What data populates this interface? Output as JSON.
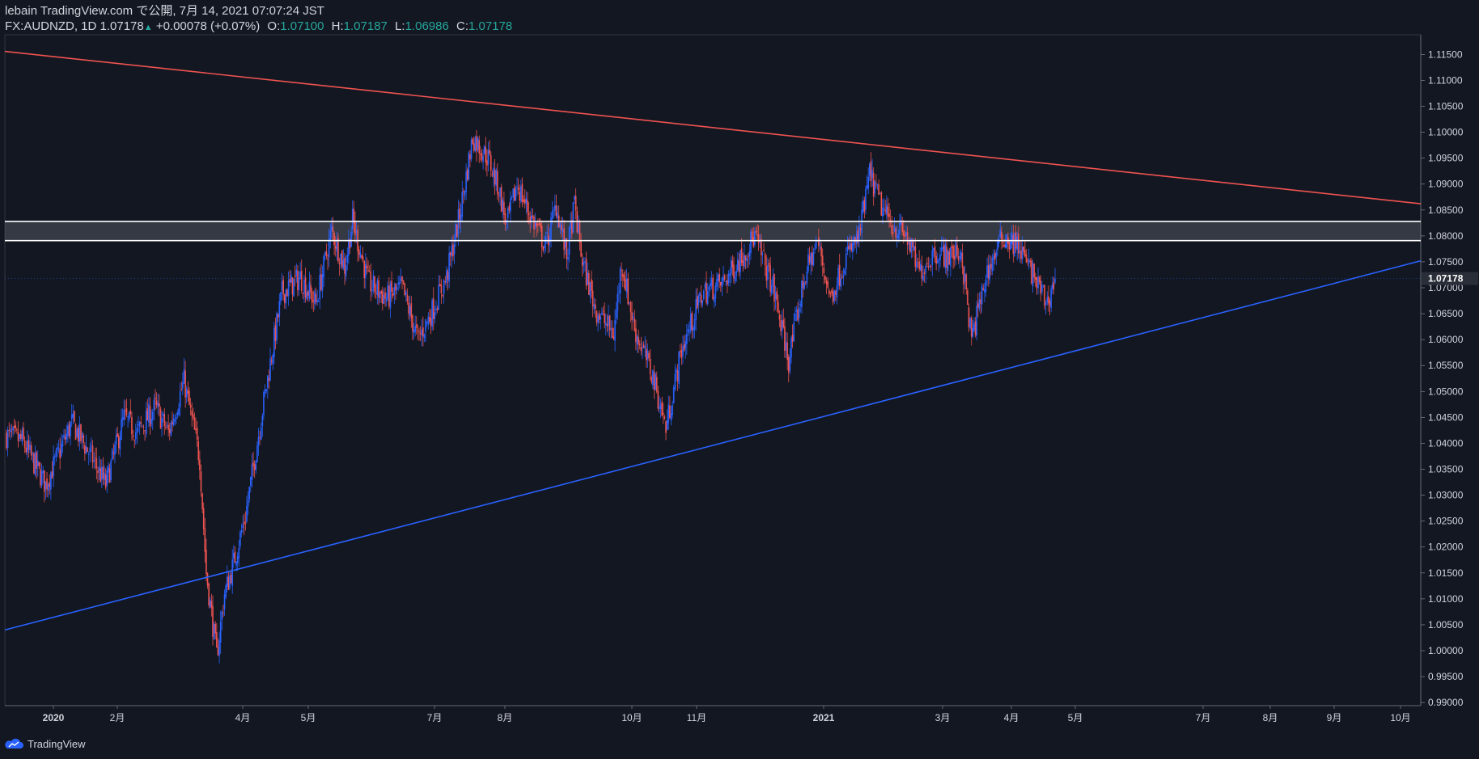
{
  "header": {
    "line1": "lebain TradingView.com で公開, 7月 14, 2021 07:07:24 JST",
    "symbol": "FX:AUDNZD, 1D",
    "last": "1.07178",
    "change": "+0.00078 (+0.07%)",
    "o_label": "O:",
    "o_value": "1.07100",
    "h_label": "H:",
    "h_value": "1.07187",
    "l_label": "L:",
    "l_value": "1.06986",
    "c_label": "C:",
    "c_value": "1.07178"
  },
  "footer": {
    "brand": "TradingView"
  },
  "colors": {
    "background": "#131722",
    "up": "#2962ff",
    "down": "#ef5350",
    "resistance_trendline": "#ef5350",
    "support_trendline": "#2962ff",
    "zone_lines": "#ffffff",
    "text": "#d1d4dc",
    "change_up": "#26a69a"
  },
  "chart_data": {
    "type": "candlestick",
    "y_axis": {
      "ticks": [
        "1.11500",
        "1.11000",
        "1.10500",
        "1.10000",
        "1.09500",
        "1.09000",
        "1.08500",
        "1.08000",
        "1.07500",
        "1.07000",
        "1.06500",
        "1.06000",
        "1.05500",
        "1.05000",
        "1.04500",
        "1.04000",
        "1.03500",
        "1.03000",
        "1.02500",
        "1.02000",
        "1.01500",
        "1.01000",
        "1.00500",
        "1.00000",
        "0.99500",
        "0.99000"
      ],
      "range": [
        0.9894,
        1.1188
      ],
      "current_price_label": "1.07178",
      "current_price": 1.07178
    },
    "x_axis": {
      "labels": [
        {
          "label": "2020",
          "bold": true
        },
        {
          "label": "2月",
          "bold": false
        },
        {
          "label": "4月",
          "bold": false
        },
        {
          "label": "5月",
          "bold": false
        },
        {
          "label": "7月",
          "bold": false
        },
        {
          "label": "8月",
          "bold": false
        },
        {
          "label": "10月",
          "bold": false
        },
        {
          "label": "11月",
          "bold": false
        },
        {
          "label": "2021",
          "bold": true
        },
        {
          "label": "3月",
          "bold": false
        },
        {
          "label": "4月",
          "bold": false
        },
        {
          "label": "5月",
          "bold": false
        },
        {
          "label": "7月",
          "bold": false
        },
        {
          "label": "8月",
          "bold": false
        },
        {
          "label": "9月",
          "bold": false
        },
        {
          "label": "10月",
          "bold": false
        }
      ]
    },
    "drawings": {
      "resistance_trendline": {
        "from": {
          "date": "2019-12-03",
          "price": 1.1156
        },
        "to": {
          "date": "2021-10-21",
          "price": 1.0862
        }
      },
      "support_trendline": {
        "from": {
          "date": "2019-12-03",
          "price": 1.004
        },
        "to": {
          "date": "2021-10-21",
          "price": 1.0752
        }
      },
      "zone": {
        "upper": 1.0828,
        "lower": 1.0791
      }
    },
    "price_path": [
      [
        1.0415,
        25
      ],
      [
        1.0405,
        12
      ],
      [
        1.032,
        18
      ],
      [
        1.044,
        20
      ],
      [
        1.037,
        16
      ],
      [
        1.032,
        10
      ],
      [
        1.045,
        14
      ],
      [
        1.042,
        10
      ],
      [
        1.047,
        14
      ],
      [
        1.042,
        10
      ],
      [
        1.052,
        12
      ],
      [
        1.037,
        12
      ],
      [
        1.015,
        5
      ],
      [
        0.999,
        8
      ],
      [
        1.011,
        6
      ],
      [
        1.016,
        6
      ],
      [
        1.026,
        10
      ],
      [
        1.048,
        14
      ],
      [
        1.069,
        14
      ],
      [
        1.072,
        14
      ],
      [
        1.067,
        12
      ],
      [
        1.081,
        12
      ],
      [
        1.074,
        10
      ],
      [
        1.083,
        6
      ],
      [
        1.071,
        12
      ],
      [
        1.068,
        14
      ],
      [
        1.07,
        12
      ],
      [
        1.06,
        12
      ],
      [
        1.065,
        10
      ],
      [
        1.072,
        12
      ],
      [
        1.084,
        10
      ],
      [
        1.099,
        10
      ],
      [
        1.095,
        12
      ],
      [
        1.089,
        8
      ],
      [
        1.082,
        6
      ],
      [
        1.09,
        8
      ],
      [
        1.084,
        10
      ],
      [
        1.078,
        12
      ],
      [
        1.086,
        8
      ],
      [
        1.076,
        8
      ],
      [
        1.086,
        6
      ],
      [
        1.075,
        6
      ],
      [
        1.066,
        10
      ],
      [
        1.061,
        14
      ],
      [
        1.075,
        6
      ],
      [
        1.062,
        10
      ],
      [
        1.053,
        14
      ],
      [
        1.043,
        10
      ],
      [
        1.058,
        12
      ],
      [
        1.069,
        16
      ],
      [
        1.071,
        16
      ],
      [
        1.076,
        14
      ],
      [
        1.08,
        10
      ],
      [
        1.07,
        14
      ],
      [
        1.056,
        12
      ],
      [
        1.072,
        12
      ],
      [
        1.079,
        10
      ],
      [
        1.068,
        10
      ],
      [
        1.076,
        12
      ],
      [
        1.08,
        10
      ],
      [
        1.092,
        8
      ],
      [
        1.085,
        10
      ],
      [
        1.082,
        8
      ],
      [
        1.08,
        10
      ],
      [
        1.073,
        10
      ],
      [
        1.077,
        12
      ],
      [
        1.076,
        10
      ],
      [
        1.077,
        10
      ],
      [
        1.06,
        8
      ],
      [
        1.073,
        12
      ],
      [
        1.08,
        12
      ],
      [
        1.078,
        12
      ],
      [
        1.073,
        10
      ],
      [
        1.067,
        12
      ],
      [
        1.0718,
        6
      ]
    ]
  }
}
